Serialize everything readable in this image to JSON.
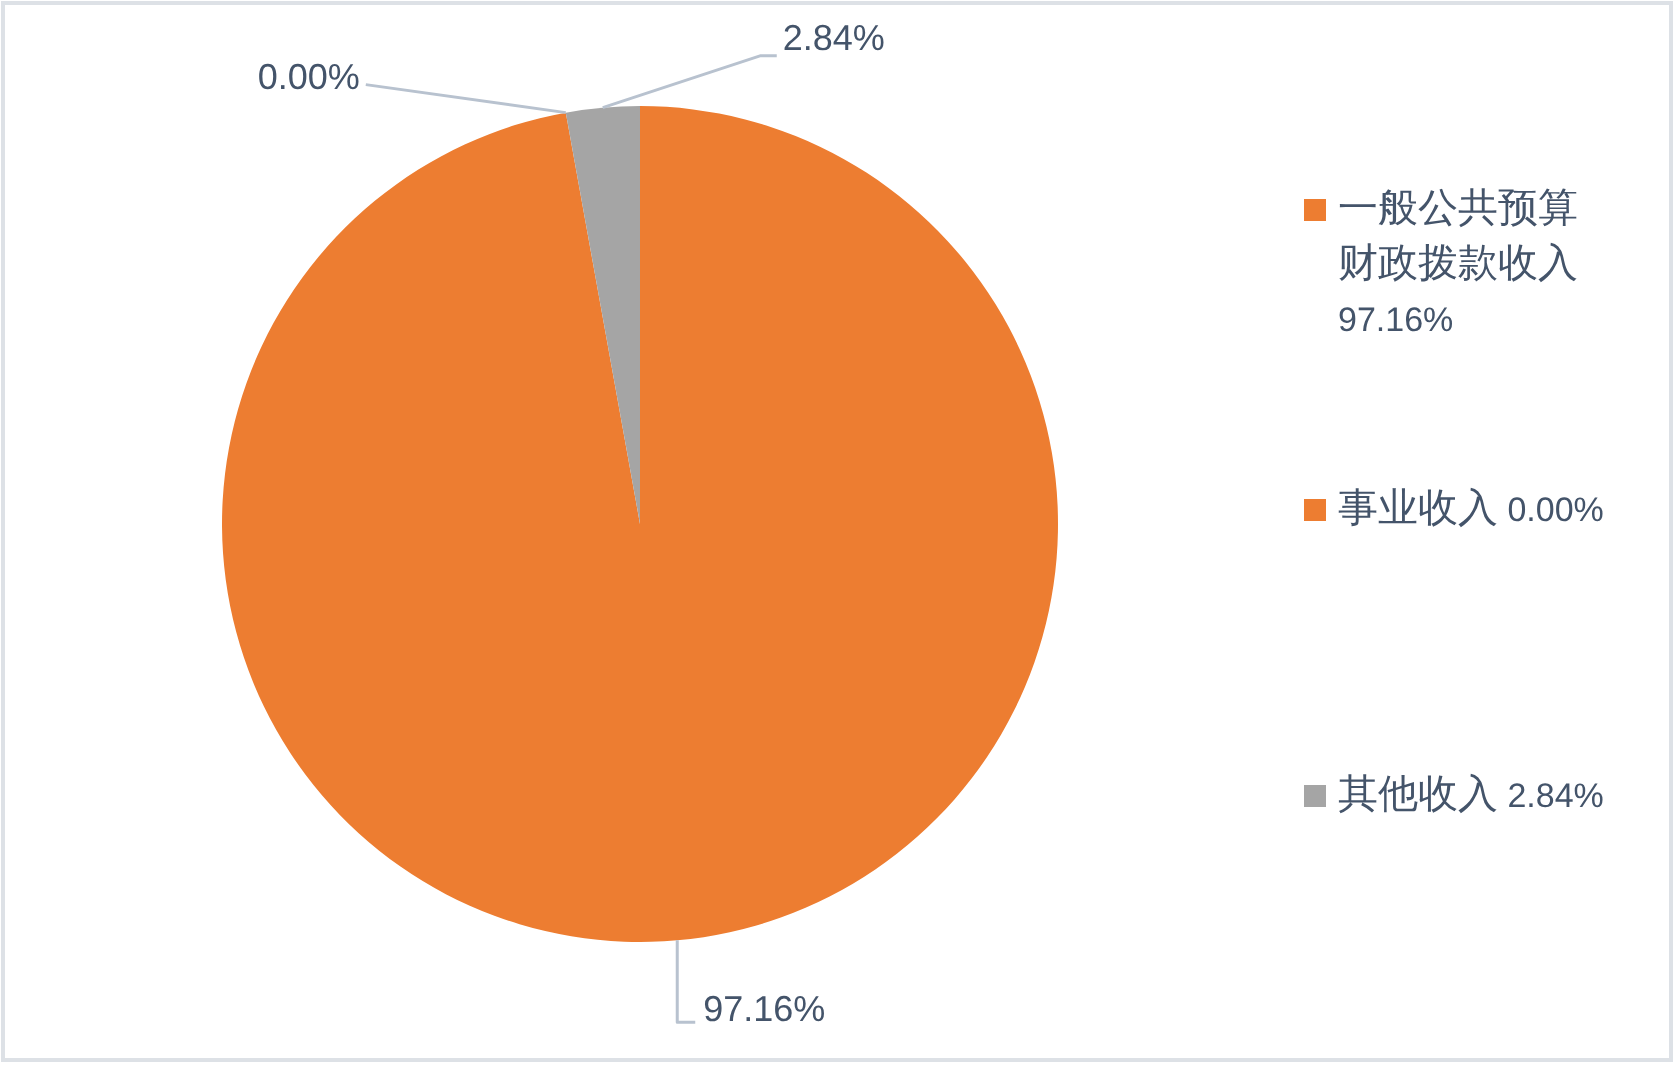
{
  "chart_data": {
    "type": "pie",
    "categories": [
      "一般公共预算财政拨款收入",
      "事业收入",
      "其他收入"
    ],
    "values": [
      97.16,
      0,
      2.84
    ],
    "value_labels": [
      "97.16%",
      "0.00%",
      "2.84%"
    ],
    "colors": [
      "#ed7d31",
      "#ed7d31",
      "#a5a5a5"
    ],
    "legend": "right"
  }
}
